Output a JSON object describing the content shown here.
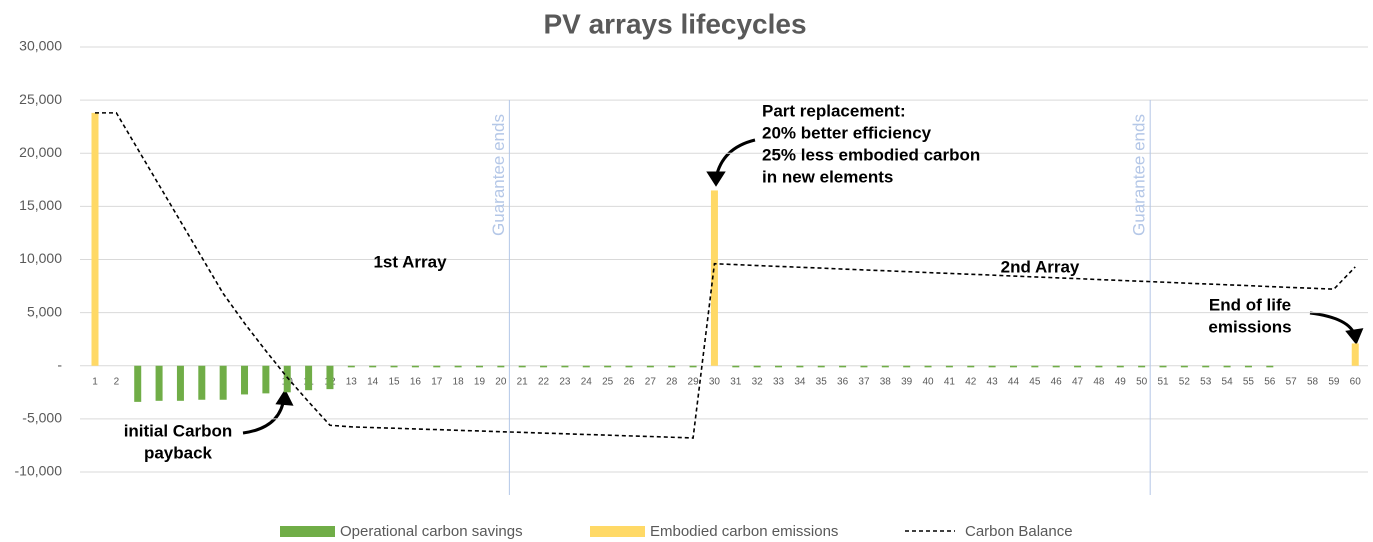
{
  "chart_data": {
    "type": "bar_line",
    "title": "PV arrays lifecycles",
    "categories": [
      "1",
      "2",
      "3",
      "4",
      "5",
      "6",
      "7",
      "8",
      "9",
      "10",
      "11",
      "12",
      "13",
      "14",
      "15",
      "16",
      "17",
      "18",
      "19",
      "20",
      "21",
      "22",
      "23",
      "24",
      "25",
      "26",
      "27",
      "28",
      "29",
      "30",
      "31",
      "32",
      "33",
      "34",
      "35",
      "36",
      "37",
      "38",
      "39",
      "40",
      "41",
      "42",
      "43",
      "44",
      "45",
      "46",
      "47",
      "48",
      "49",
      "50",
      "51",
      "52",
      "53",
      "54",
      "55",
      "56",
      "57",
      "58",
      "59",
      "60"
    ],
    "series": [
      {
        "name": "Operational carbon savings",
        "color": "#70ad47",
        "kind": "bar",
        "values": [
          0,
          0,
          -3400,
          -3300,
          -3300,
          -3200,
          -3200,
          -2700,
          -2600,
          -2500,
          -2300,
          -2200,
          -150,
          -150,
          -150,
          -150,
          -150,
          -150,
          -150,
          -150,
          -150,
          -150,
          -150,
          -150,
          -150,
          -150,
          -150,
          -150,
          -150,
          0,
          -150,
          -150,
          -150,
          -150,
          -150,
          -150,
          -150,
          -150,
          -150,
          -150,
          -150,
          -150,
          -150,
          -150,
          -150,
          -150,
          -150,
          -150,
          -150,
          -150,
          -150,
          -150,
          -150,
          -150,
          -150,
          -150,
          0,
          0,
          0,
          0
        ]
      },
      {
        "name": "Embodied carbon emissions",
        "color": "#ffd966",
        "kind": "bar",
        "values": [
          23800,
          0,
          0,
          0,
          0,
          0,
          0,
          0,
          0,
          0,
          0,
          0,
          0,
          0,
          0,
          0,
          0,
          0,
          0,
          0,
          0,
          0,
          0,
          0,
          0,
          0,
          0,
          0,
          0,
          16500,
          0,
          0,
          0,
          0,
          0,
          0,
          0,
          0,
          0,
          0,
          0,
          0,
          0,
          0,
          0,
          0,
          0,
          0,
          0,
          0,
          0,
          0,
          0,
          0,
          0,
          0,
          0,
          0,
          0,
          2100
        ]
      },
      {
        "name": "Carbon Balance",
        "color": "#000000",
        "kind": "line",
        "values": [
          23800,
          23800,
          20400,
          17000,
          13600,
          10200,
          6800,
          4000,
          1400,
          -1100,
          -3400,
          -5600,
          -5750,
          -5820,
          -5880,
          -5950,
          -6010,
          -6080,
          -6140,
          -6210,
          -6270,
          -6340,
          -6400,
          -6470,
          -6530,
          -6600,
          -6660,
          -6730,
          -6800,
          9600,
          9520,
          9430,
          9350,
          9270,
          9190,
          9100,
          9020,
          8940,
          8860,
          8770,
          8690,
          8610,
          8530,
          8440,
          8360,
          8280,
          8200,
          8110,
          8030,
          7950,
          7870,
          7780,
          7700,
          7620,
          7540,
          7450,
          7370,
          7290,
          7210,
          9300
        ]
      }
    ],
    "ylim": [
      -10000,
      30000
    ],
    "yticks": [
      {
        "value": -10000,
        "label": "-10,000"
      },
      {
        "value": -5000,
        "label": "-5,000"
      },
      {
        "value": 0,
        "label": "-"
      },
      {
        "value": 5000,
        "label": "5,000"
      },
      {
        "value": 10000,
        "label": "10,000"
      },
      {
        "value": 15000,
        "label": "15,000"
      },
      {
        "value": 20000,
        "label": "20,000"
      },
      {
        "value": 25000,
        "label": "25,000"
      },
      {
        "value": 30000,
        "label": "30,000"
      }
    ],
    "grid": true,
    "legend": "bottom",
    "annotations": [
      {
        "lines": [
          "1st Array"
        ]
      },
      {
        "lines": [
          "2nd Array"
        ]
      },
      {
        "lines": [
          "Part replacement:",
          "20% better efficiency",
          "25% less embodied carbon",
          "in new elements"
        ]
      },
      {
        "lines": [
          "End of life",
          "emissions"
        ]
      },
      {
        "lines": [
          "initial Carbon",
          "payback"
        ]
      },
      {
        "lines": [
          "Guarantee ends"
        ]
      },
      {
        "lines": [
          "Guarantee ends"
        ]
      }
    ]
  }
}
